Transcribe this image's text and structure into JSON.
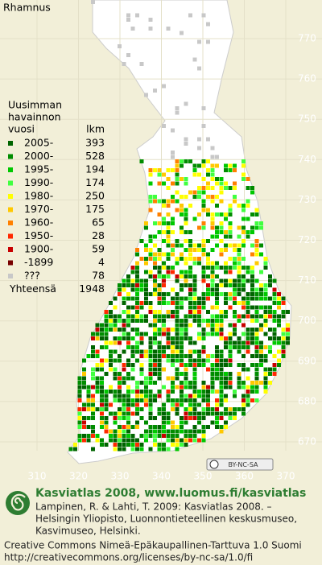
{
  "title": "Rhamnus",
  "legend": {
    "heading_1": "Uusimman",
    "heading_2": "havainnon",
    "col_year": "vuosi",
    "col_count": "lkm",
    "rows": [
      {
        "label": "2005-",
        "count": 393,
        "color": "#006400"
      },
      {
        "label": "2000-",
        "count": 528,
        "color": "#008c00"
      },
      {
        "label": "1995-",
        "count": 194,
        "color": "#00c800"
      },
      {
        "label": "1990-",
        "count": 174,
        "color": "#40ff40"
      },
      {
        "label": "1980-",
        "count": 250,
        "color": "#ffff00"
      },
      {
        "label": "1970-",
        "count": 175,
        "color": "#ffc800"
      },
      {
        "label": "1960-",
        "count": 65,
        "color": "#ff8000"
      },
      {
        "label": "1950-",
        "count": 28,
        "color": "#ff2800"
      },
      {
        "label": "1900-",
        "count": 59,
        "color": "#c80000"
      },
      {
        "label": "-1899",
        "count": 4,
        "color": "#780000"
      },
      {
        "label": "???",
        "count": 78,
        "color": "#c8c8c8"
      }
    ],
    "total_label": "Yhteensä",
    "total": 1948
  },
  "y_labels": [
    770,
    760,
    750,
    740,
    730,
    720,
    710,
    700,
    690,
    680,
    670
  ],
  "x_labels": [
    310,
    320,
    330,
    340,
    350,
    360,
    370
  ],
  "badge": "BY-NC-SA",
  "footer": {
    "heading": "Kasviatlas 2008, www.luomus.fi/kasviatlas",
    "citation": [
      "Lampinen, R. & Lahti, T. 2009: Kasviatlas 2008. –",
      "Helsingin Yliopisto, Luonnontieteellinen keskusmuseo,",
      "Kasvimuseo, Helsinki."
    ],
    "license": [
      "Creative Commons Nimeä-Epäkaupallinen-Tarttuva 1.0 Suomi",
      "http://creativecommons.org/licenses/by-nc-sa/1.0/fi"
    ]
  }
}
